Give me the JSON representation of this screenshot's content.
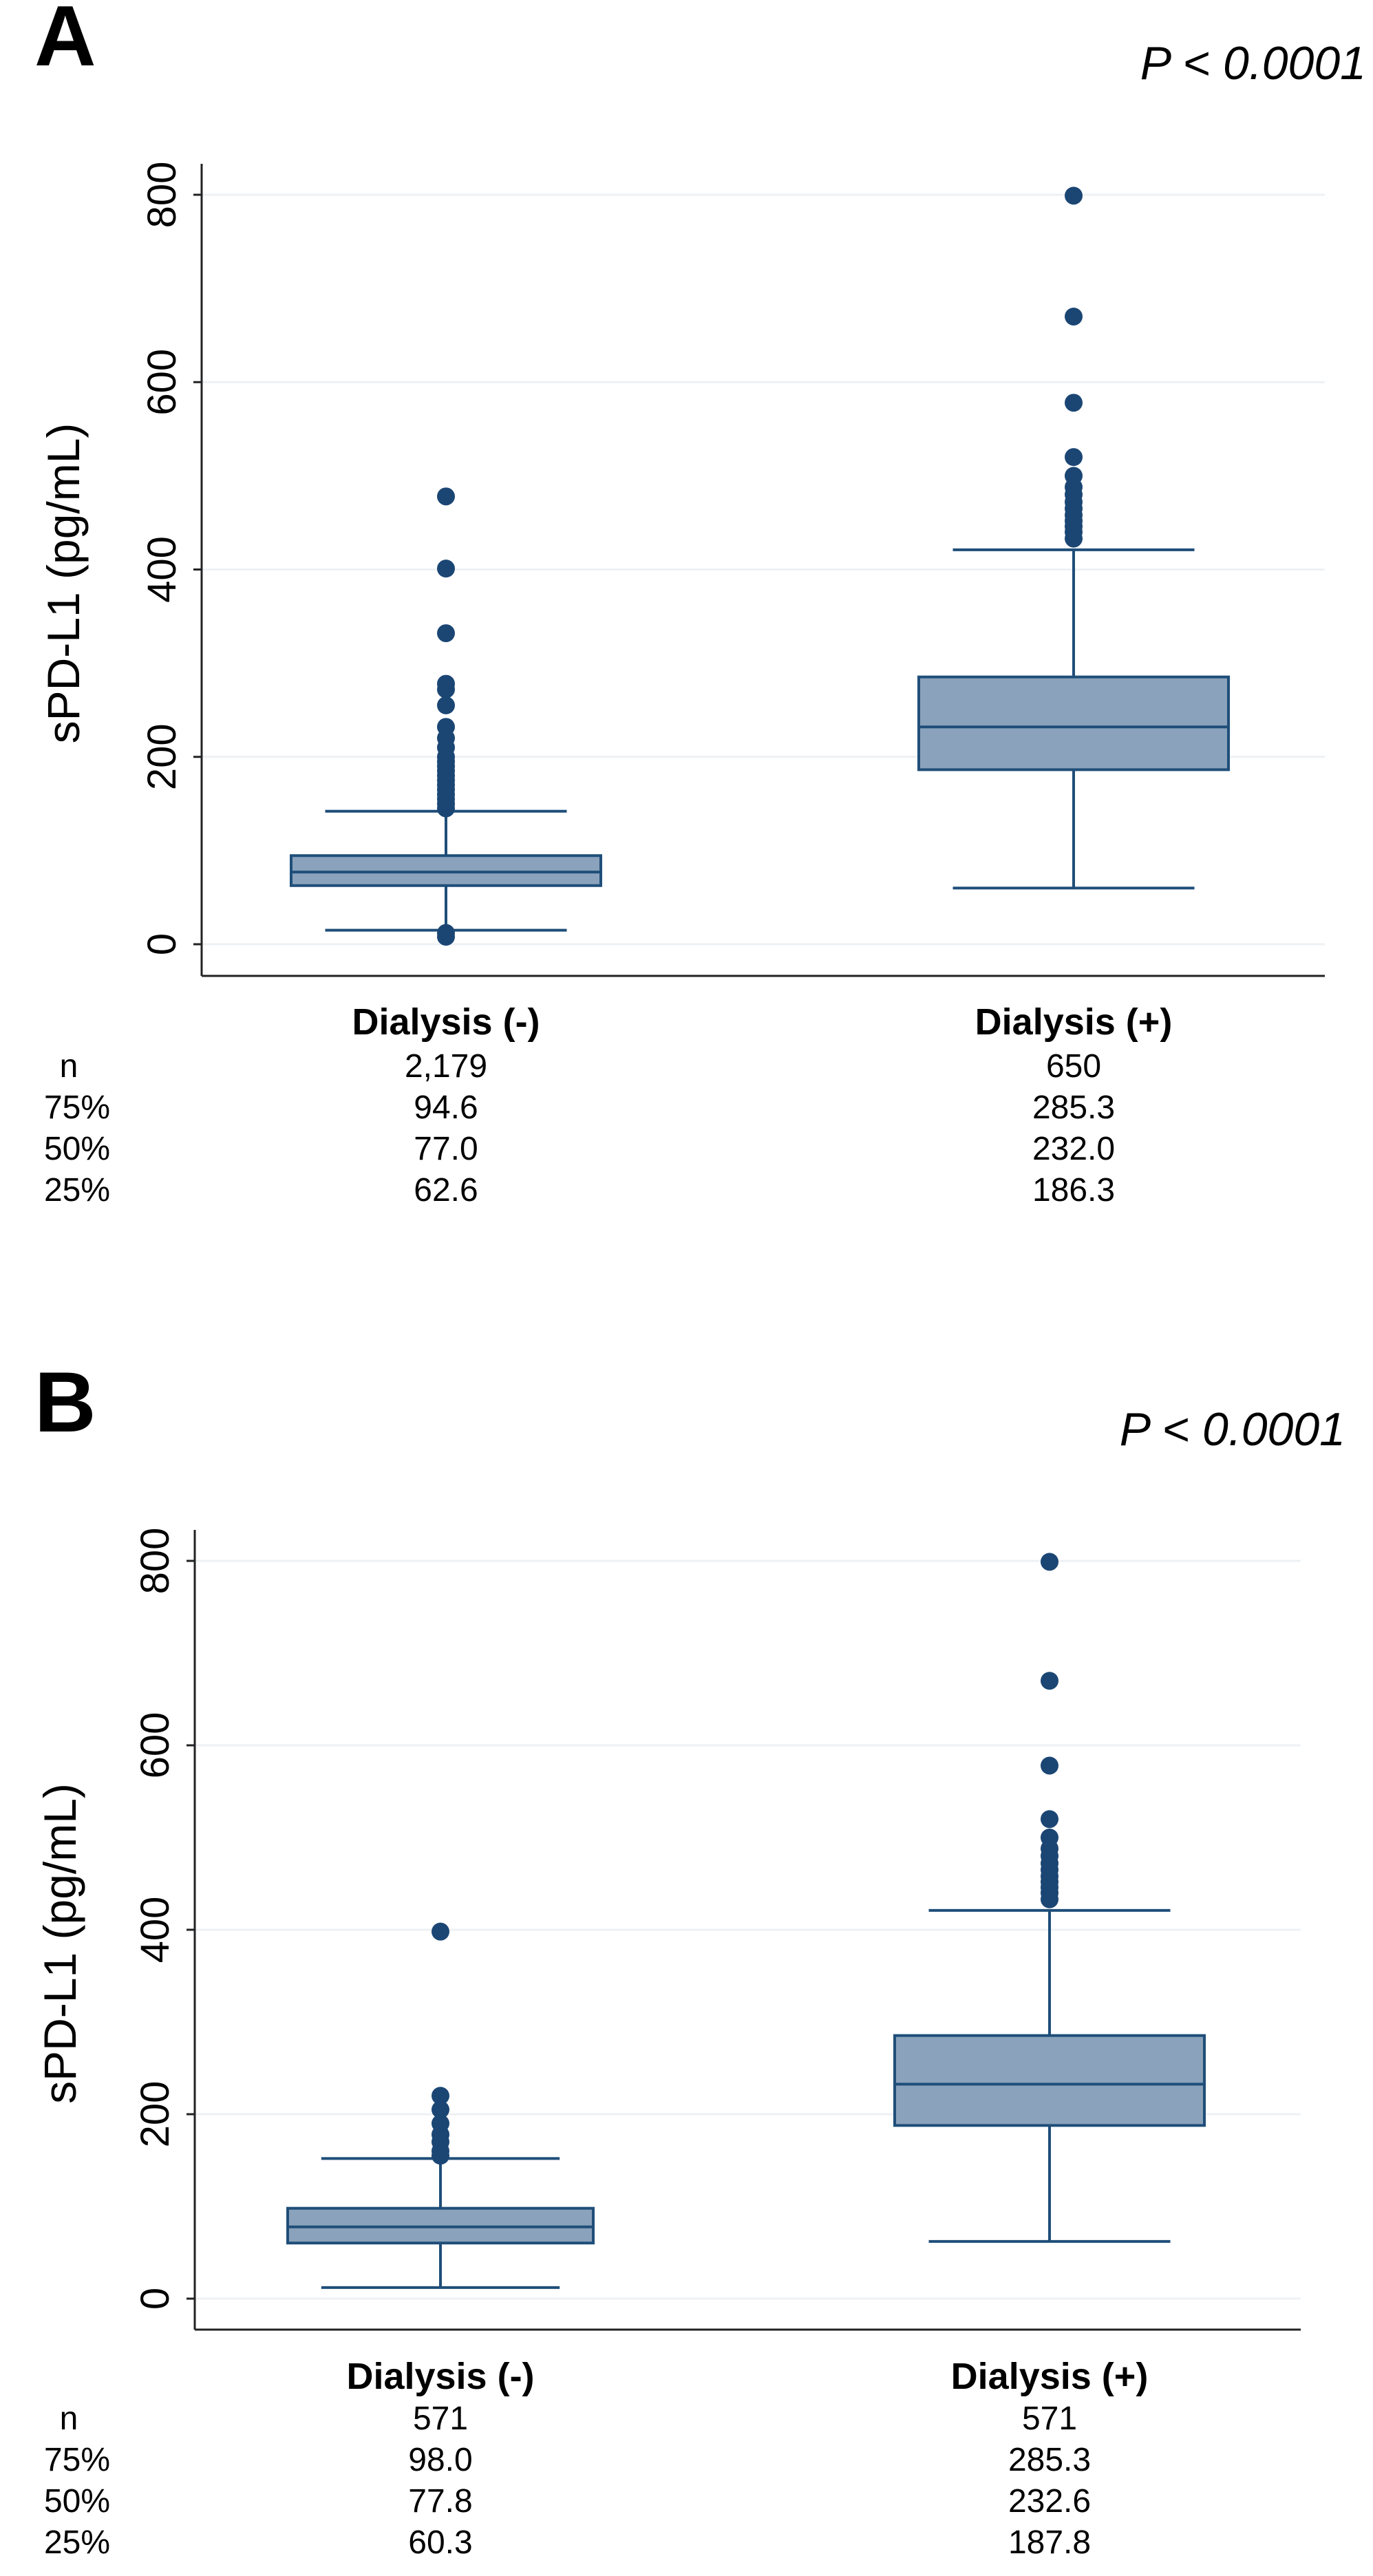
{
  "chart_data": [
    {
      "type": "box",
      "panel": "A",
      "p_value": "P < 0.0001",
      "ylabel": "sPD-L1 (pg/mL)",
      "ylim": [
        0,
        800
      ],
      "yticks": [
        "0",
        "200",
        "400",
        "600",
        "800"
      ],
      "grid": true,
      "categories": [
        "Dialysis (-)",
        "Dialysis (+)"
      ],
      "boxes": [
        {
          "q1": 62.6,
          "median": 77.0,
          "q3": 94.6,
          "whisker_low": 15,
          "whisker_high": 142,
          "outliers": [
            8,
            12,
            145,
            150,
            155,
            160,
            165,
            170,
            175,
            180,
            185,
            190,
            195,
            200,
            210,
            220,
            232,
            255,
            272,
            278,
            332,
            401,
            478
          ]
        },
        {
          "q1": 186.3,
          "median": 232.0,
          "q3": 285.3,
          "whisker_low": 60,
          "whisker_high": 421,
          "outliers": [
            433,
            440,
            446,
            452,
            458,
            465,
            472,
            480,
            488,
            500,
            520,
            578,
            670,
            799
          ]
        }
      ],
      "stats_table": {
        "row_labels": [
          "n",
          "75%",
          "50%",
          "25%"
        ],
        "columns": [
          [
            "2,179",
            "94.6",
            "77.0",
            "62.6"
          ],
          [
            "650",
            "285.3",
            "232.0",
            "186.3"
          ]
        ]
      }
    },
    {
      "type": "box",
      "panel": "B",
      "p_value": "P < 0.0001",
      "ylabel": "sPD-L1 (pg/mL)",
      "ylim": [
        0,
        800
      ],
      "yticks": [
        "0",
        "200",
        "400",
        "600",
        "800"
      ],
      "grid": true,
      "categories": [
        "Dialysis (-)",
        "Dialysis (+)"
      ],
      "boxes": [
        {
          "q1": 60.3,
          "median": 77.8,
          "q3": 98.0,
          "whisker_low": 12,
          "whisker_high": 152,
          "outliers": [
            155,
            160,
            170,
            178,
            190,
            205,
            220,
            398
          ]
        },
        {
          "q1": 187.8,
          "median": 232.6,
          "q3": 285.3,
          "whisker_low": 62,
          "whisker_high": 421,
          "outliers": [
            433,
            440,
            446,
            452,
            458,
            465,
            472,
            480,
            488,
            500,
            520,
            578,
            670,
            799
          ]
        }
      ],
      "stats_table": {
        "row_labels": [
          "n",
          "75%",
          "50%",
          "25%"
        ],
        "columns": [
          [
            "571",
            "98.0",
            "77.8",
            "60.3"
          ],
          [
            "571",
            "285.3",
            "232.6",
            "187.8"
          ]
        ]
      }
    }
  ]
}
